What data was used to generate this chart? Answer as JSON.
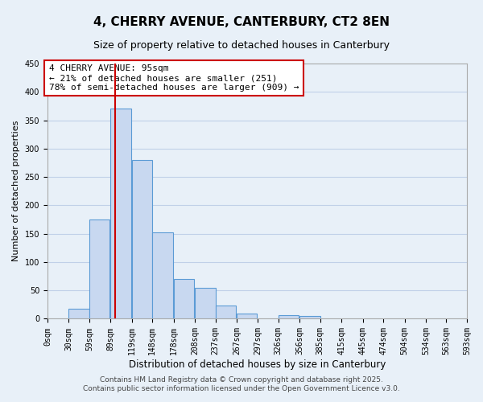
{
  "title": "4, CHERRY AVENUE, CANTERBURY, CT2 8EN",
  "subtitle": "Size of property relative to detached houses in Canterbury",
  "xlabel": "Distribution of detached houses by size in Canterbury",
  "ylabel": "Number of detached properties",
  "bin_labels": [
    "0sqm",
    "30sqm",
    "59sqm",
    "89sqm",
    "119sqm",
    "148sqm",
    "178sqm",
    "208sqm",
    "237sqm",
    "267sqm",
    "297sqm",
    "326sqm",
    "356sqm",
    "385sqm",
    "415sqm",
    "445sqm",
    "474sqm",
    "504sqm",
    "534sqm",
    "563sqm",
    "593sqm"
  ],
  "bar_values": [
    0,
    18,
    175,
    370,
    280,
    153,
    70,
    55,
    23,
    9,
    0,
    6,
    5,
    0,
    0,
    0,
    0,
    0,
    0,
    0
  ],
  "bar_color": "#c8d8f0",
  "bar_edge_color": "#5b9bd5",
  "grid_color": "#c0d0e8",
  "background_color": "#e8f0f8",
  "vline_x": 95,
  "vline_color": "#cc0000",
  "annotation_text": "4 CHERRY AVENUE: 95sqm\n← 21% of detached houses are smaller (251)\n78% of semi-detached houses are larger (909) →",
  "annotation_box_color": "#ffffff",
  "annotation_box_edge": "#cc0000",
  "ylim": [
    0,
    450
  ],
  "yticks": [
    0,
    50,
    100,
    150,
    200,
    250,
    300,
    350,
    400,
    450
  ],
  "footer_line1": "Contains HM Land Registry data © Crown copyright and database right 2025.",
  "footer_line2": "Contains public sector information licensed under the Open Government Licence v3.0.",
  "bin_width": 29,
  "bin_starts": [
    0,
    30,
    59,
    89,
    119,
    148,
    178,
    208,
    237,
    267,
    297,
    326,
    356,
    385,
    415,
    445,
    474,
    504,
    534,
    563
  ],
  "title_fontsize": 11,
  "subtitle_fontsize": 9,
  "ylabel_fontsize": 8,
  "xlabel_fontsize": 8.5,
  "tick_fontsize": 7,
  "annot_fontsize": 8,
  "footer_fontsize": 6.5
}
